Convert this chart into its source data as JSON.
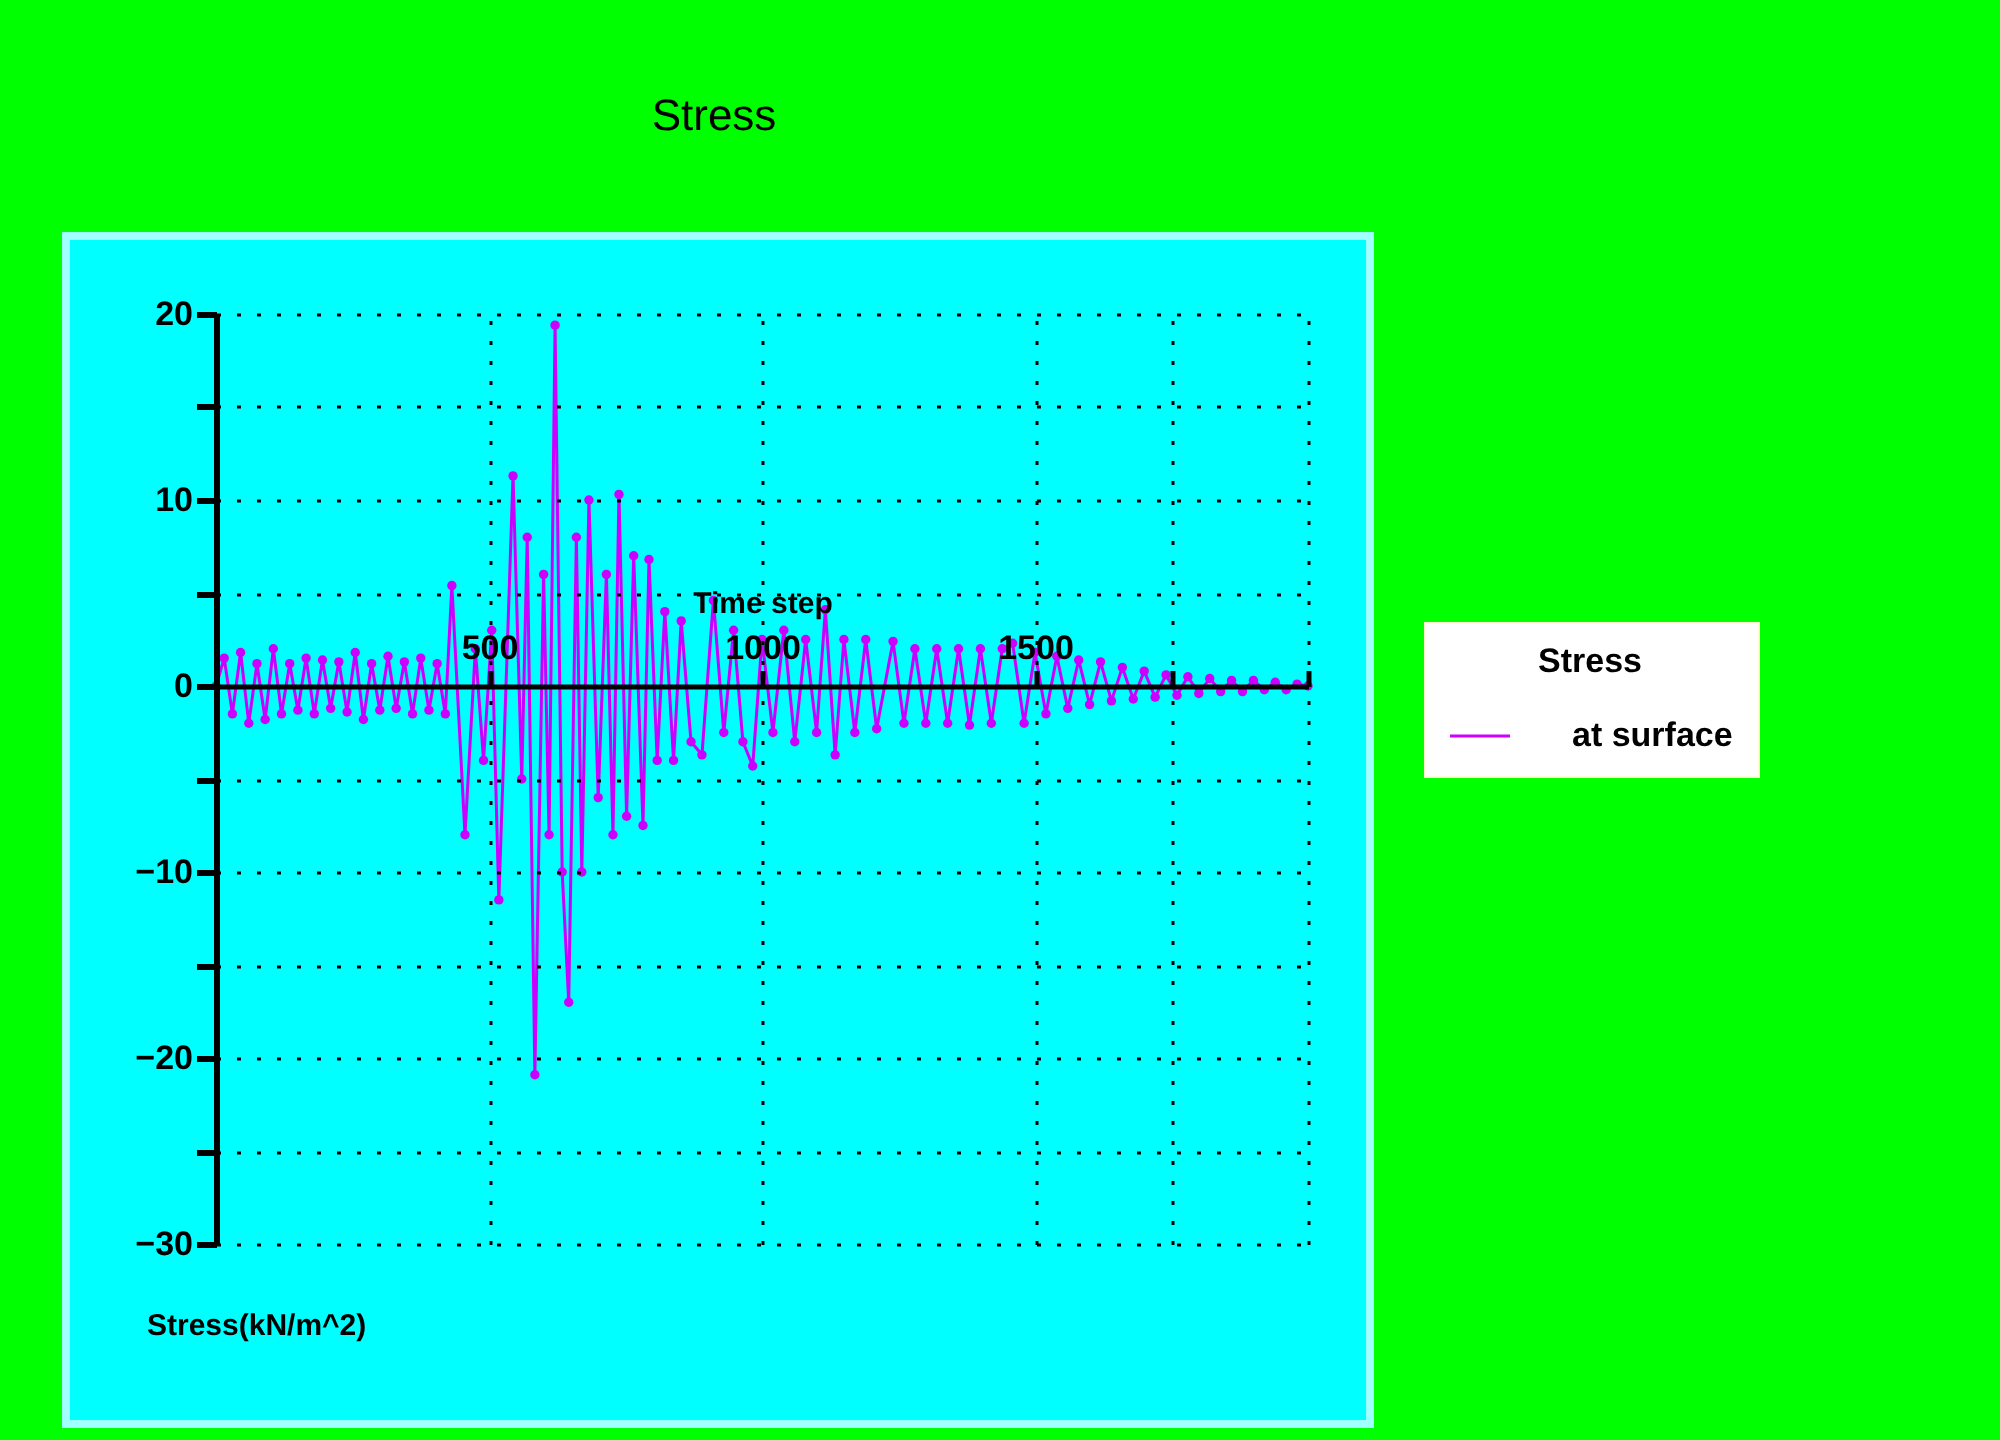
{
  "chart_data": {
    "type": "line",
    "title": "Stress",
    "xlabel": "Time step",
    "ylabel": "Stress(kN/m^2)",
    "legend_title": "Stress",
    "xlim": [
      0,
      2000
    ],
    "xticks": [
      500,
      1000,
      1500,
      {
        "value": 1750,
        "label": null
      },
      {
        "value": 2000,
        "label": null
      }
    ],
    "ylim": [
      -30,
      20
    ],
    "yticks": [
      20,
      {
        "value": 15,
        "label": null
      },
      10,
      {
        "value": 5,
        "label": null
      },
      0,
      {
        "value": -5,
        "label": null
      },
      -10,
      {
        "value": -15,
        "label": null
      },
      -20,
      {
        "value": -25,
        "label": null
      },
      -30
    ],
    "grid": true,
    "legend": "right",
    "marker": "circle",
    "line_style": "solid",
    "series": [
      {
        "name": "at surface",
        "color": "#cc00ff",
        "x": [
          0,
          15,
          30,
          45,
          60,
          75,
          90,
          105,
          120,
          135,
          150,
          165,
          180,
          195,
          210,
          225,
          240,
          255,
          270,
          285,
          300,
          315,
          330,
          345,
          360,
          375,
          390,
          405,
          420,
          432,
          456,
          475,
          490,
          505,
          518,
          544,
          560,
          570,
          584,
          600,
          610,
          621,
          634,
          646,
          660,
          670,
          683,
          700,
          715,
          727,
          738,
          752,
          765,
          782,
          793,
          808,
          822,
          838,
          852,
          870,
          890,
          911,
          930,
          948,
          965,
          983,
          1000,
          1020,
          1040,
          1060,
          1080,
          1100,
          1116,
          1134,
          1150,
          1170,
          1190,
          1210,
          1240,
          1260,
          1280,
          1300,
          1320,
          1340,
          1360,
          1380,
          1400,
          1420,
          1440,
          1459,
          1480,
          1500,
          1520,
          1540,
          1560,
          1580,
          1600,
          1620,
          1640,
          1660,
          1680,
          1700,
          1720,
          1740,
          1760,
          1780,
          1800,
          1820,
          1840,
          1860,
          1880,
          1900,
          1920,
          1940,
          1960,
          1980,
          2000
        ],
        "values": [
          0,
          1.5,
          -1.5,
          1.8,
          -2,
          1.2,
          -1.8,
          2,
          -1.5,
          1.2,
          -1.3,
          1.5,
          -1.5,
          1.4,
          -1.2,
          1.3,
          -1.4,
          1.8,
          -1.8,
          1.2,
          -1.3,
          1.6,
          -1.2,
          1.3,
          -1.5,
          1.5,
          -1.3,
          1.2,
          -1.5,
          5.4,
          -8,
          2,
          -4,
          3,
          -11.5,
          11.3,
          -5,
          8,
          -20.9,
          6,
          -8,
          19.4,
          -10,
          -17,
          8,
          -10,
          10,
          -6,
          6,
          -8,
          10.3,
          -7,
          7,
          -7.5,
          6.8,
          -4,
          4,
          -4,
          3.5,
          -3,
          -3.7,
          4.6,
          -2.5,
          3,
          -3,
          -4.3,
          2.5,
          -2.5,
          3,
          -3,
          2.5,
          -2.5,
          4.1,
          -3.7,
          2.5,
          -2.5,
          2.5,
          -2.3,
          2.4,
          -2,
          2,
          -2,
          2,
          -2,
          2,
          -2.1,
          2,
          -2,
          2,
          2.3,
          -2,
          1.8,
          -1.5,
          1.6,
          -1.2,
          1.4,
          -1,
          1.3,
          -0.8,
          1,
          -0.7,
          0.8,
          -0.6,
          0.6,
          -0.5,
          0.5,
          -0.4,
          0.4,
          -0.3,
          0.3,
          -0.3,
          0.3,
          -0.2,
          0.2,
          -0.2,
          0.1,
          0
        ]
      }
    ]
  }
}
